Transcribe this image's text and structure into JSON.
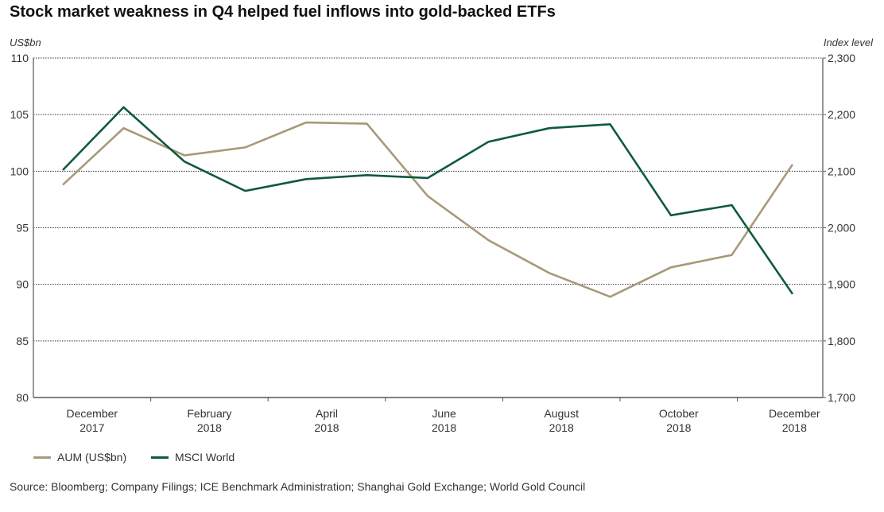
{
  "chart_data": {
    "type": "line",
    "title": "Stock market weakness in Q4 helped fuel inflows into gold-backed ETFs",
    "ylabel_left": "US$bn",
    "ylabel_right": "Index level",
    "ylim_left": [
      80,
      110
    ],
    "ylim_right": [
      1700,
      2300
    ],
    "yticks_left": [
      "80",
      "85",
      "90",
      "95",
      "100",
      "105",
      "110"
    ],
    "yticks_right": [
      "1,700",
      "1,800",
      "1,900",
      "2,000",
      "2,100",
      "2,200",
      "2,300"
    ],
    "x": [
      "Dec 2017",
      "Jan 2018",
      "Feb 2018",
      "Mar 2018",
      "Apr 2018",
      "May 2018",
      "Jun 2018",
      "Jul 2018",
      "Aug 2018",
      "Sep 2018",
      "Oct 2018",
      "Nov 2018",
      "Dec 2018"
    ],
    "xtick_labels": [
      [
        "December",
        "2017"
      ],
      [
        "February",
        "2018"
      ],
      [
        "April",
        "2018"
      ],
      [
        "June",
        "2018"
      ],
      [
        "August",
        "2018"
      ],
      [
        "October",
        "2018"
      ],
      [
        "December",
        "2018"
      ]
    ],
    "grid": "horizontal dotted",
    "legend_placement": "bottom-left",
    "series": [
      {
        "name": "AUM (US$bn)",
        "axis": "left",
        "color": "#a8997a",
        "values": [
          98.8,
          103.8,
          101.4,
          102.1,
          104.3,
          104.2,
          97.8,
          93.9,
          91.0,
          88.9,
          91.5,
          92.6,
          100.6
        ]
      },
      {
        "name": "MSCI World",
        "axis": "right",
        "color": "#0f5a3c",
        "values": [
          2102,
          2213,
          2117,
          2065,
          2086,
          2093,
          2088,
          2152,
          2176,
          2183,
          2022,
          2040,
          1883
        ]
      }
    ]
  },
  "source": "Source: Bloomberg; Company Filings; ICE Benchmark Administration; Shanghai Gold Exchange; World Gold Council"
}
